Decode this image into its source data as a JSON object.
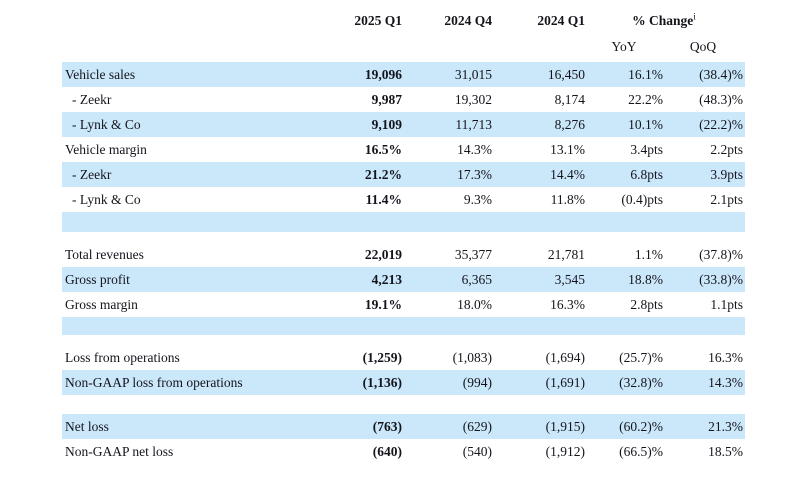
{
  "colors": {
    "row_shade": "#cbe8fb",
    "text": "#14141c",
    "background": "#ffffff"
  },
  "table": {
    "header": {
      "col_2025_q1": "2025 Q1",
      "col_2024_q4": "2024 Q4",
      "col_2024_q1": "2024 Q1",
      "pct_change": "% Change",
      "pct_change_footnote": "i",
      "yoy": "YoY",
      "qoq": "QoQ"
    },
    "rows": [
      {
        "label": "Vehicle sales",
        "indent": false,
        "shaded": true,
        "values": [
          "19,096",
          "31,015",
          "16,450",
          "16.1%",
          "(38.4)%"
        ]
      },
      {
        "label": "- Zeekr",
        "indent": true,
        "shaded": false,
        "values": [
          "9,987",
          "19,302",
          "8,174",
          "22.2%",
          "(48.3)%"
        ]
      },
      {
        "label": "- Lynk & Co",
        "indent": true,
        "shaded": true,
        "values": [
          "9,109",
          "11,713",
          "8,276",
          "10.1%",
          "(22.2)%"
        ]
      },
      {
        "label": "Vehicle margin",
        "indent": false,
        "shaded": false,
        "values": [
          "16.5%",
          "14.3%",
          "13.1%",
          "3.4pts",
          "2.2pts"
        ]
      },
      {
        "label": "- Zeekr",
        "indent": true,
        "shaded": true,
        "values": [
          "21.2%",
          "17.3%",
          "14.4%",
          "6.8pts",
          "3.9pts"
        ]
      },
      {
        "label": "- Lynk & Co",
        "indent": true,
        "shaded": false,
        "values": [
          "11.4%",
          "9.3%",
          "11.8%",
          "(0.4)pts",
          "2.1pts"
        ]
      },
      {
        "type": "spacer",
        "shaded": true,
        "height": 20
      },
      {
        "type": "spacer",
        "shaded": false,
        "height": 10
      },
      {
        "label": "Total revenues",
        "indent": false,
        "shaded": false,
        "values": [
          "22,019",
          "35,377",
          "21,781",
          "1.1%",
          "(37.8)%"
        ]
      },
      {
        "label": "Gross profit",
        "indent": false,
        "shaded": true,
        "values": [
          "4,213",
          "6,365",
          "3,545",
          "18.8%",
          "(33.8)%"
        ]
      },
      {
        "label": "Gross margin",
        "indent": false,
        "shaded": false,
        "values": [
          "19.1%",
          "18.0%",
          "16.3%",
          "2.8pts",
          "1.1pts"
        ]
      },
      {
        "type": "spacer",
        "shaded": true,
        "height": 18
      },
      {
        "type": "spacer",
        "shaded": false,
        "height": 10
      },
      {
        "label": "Loss from operations",
        "indent": false,
        "shaded": false,
        "values": [
          "(1,259)",
          "(1,083)",
          "(1,694)",
          "(25.7)%",
          "16.3%"
        ]
      },
      {
        "label": "Non-GAAP loss from operations",
        "indent": false,
        "shaded": true,
        "values": [
          "(1,136)",
          "(994)",
          "(1,691)",
          "(32.8)%",
          "14.3%"
        ]
      },
      {
        "type": "spacer",
        "shaded": false,
        "height": 19
      },
      {
        "label": "Net loss",
        "indent": false,
        "shaded": true,
        "values": [
          "(763)",
          "(629)",
          "(1,915)",
          "(60.2)%",
          "21.3%"
        ]
      },
      {
        "label": "Non-GAAP net loss",
        "indent": false,
        "shaded": false,
        "values": [
          "(640)",
          "(540)",
          "(1,912)",
          "(66.5)%",
          "18.5%"
        ]
      }
    ]
  }
}
